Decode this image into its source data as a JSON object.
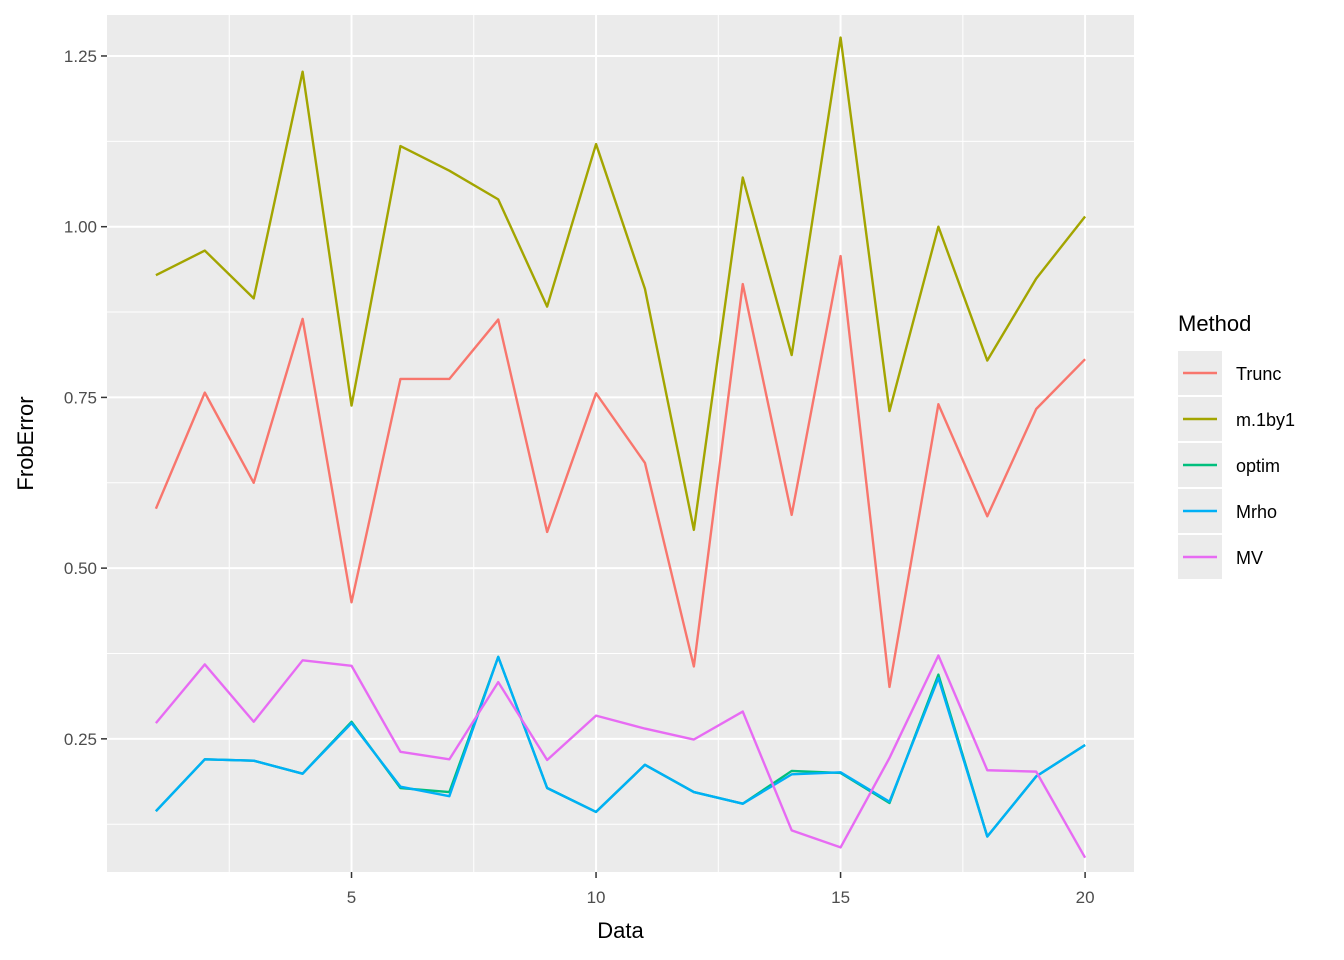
{
  "chart_data": {
    "type": "line",
    "xlabel": "Data",
    "ylabel": "FrobError",
    "xlim": [
      0,
      21
    ],
    "ylim": [
      0.055,
      1.31
    ],
    "x_ticks": [
      5,
      10,
      15,
      20
    ],
    "x_tick_labels": [
      "5",
      "10",
      "15",
      "20"
    ],
    "y_ticks": [
      0.25,
      0.5,
      0.75,
      1.0,
      1.25
    ],
    "y_tick_labels": [
      "0.25",
      "0.50",
      "0.75",
      "1.00",
      "1.25"
    ],
    "grid": true,
    "legend_position": "right",
    "legend_title": "Method",
    "x": [
      1,
      2,
      3,
      4,
      5,
      6,
      7,
      8,
      9,
      10,
      11,
      12,
      13,
      14,
      15,
      16,
      17,
      18,
      19,
      20
    ],
    "series": [
      {
        "name": "Trunc",
        "color": "#F8766D",
        "values": [
          0.587,
          0.757,
          0.625,
          0.865,
          0.45,
          0.777,
          0.777,
          0.864,
          0.553,
          0.756,
          0.654,
          0.356,
          0.916,
          0.578,
          0.957,
          0.326,
          0.74,
          0.576,
          0.733,
          0.806
        ]
      },
      {
        "name": "m.1by1",
        "color": "#A3A500",
        "values": [
          0.929,
          0.965,
          0.895,
          1.227,
          0.738,
          1.118,
          1.082,
          1.04,
          0.883,
          1.121,
          0.909,
          0.556,
          1.072,
          0.812,
          1.277,
          0.73,
          1.0,
          0.804,
          0.924,
          1.015
        ]
      },
      {
        "name": "optim",
        "color": "#00BF7D",
        "values": [
          0.144,
          0.22,
          0.218,
          0.199,
          0.275,
          0.178,
          0.172,
          0.37,
          0.178,
          0.143,
          0.212,
          0.172,
          0.155,
          0.203,
          0.2,
          0.156,
          0.344,
          0.107,
          0.195,
          0.241
        ]
      },
      {
        "name": "Mrho",
        "color": "#00B0F6",
        "values": [
          0.144,
          0.22,
          0.218,
          0.199,
          0.273,
          0.18,
          0.166,
          0.37,
          0.178,
          0.143,
          0.212,
          0.172,
          0.155,
          0.198,
          0.201,
          0.158,
          0.339,
          0.107,
          0.195,
          0.241
        ]
      },
      {
        "name": "MV",
        "color": "#E76BF3",
        "values": [
          0.273,
          0.359,
          0.275,
          0.365,
          0.357,
          0.231,
          0.22,
          0.333,
          0.219,
          0.284,
          0.265,
          0.249,
          0.29,
          0.116,
          0.091,
          0.222,
          0.372,
          0.204,
          0.202,
          0.076
        ]
      }
    ]
  }
}
